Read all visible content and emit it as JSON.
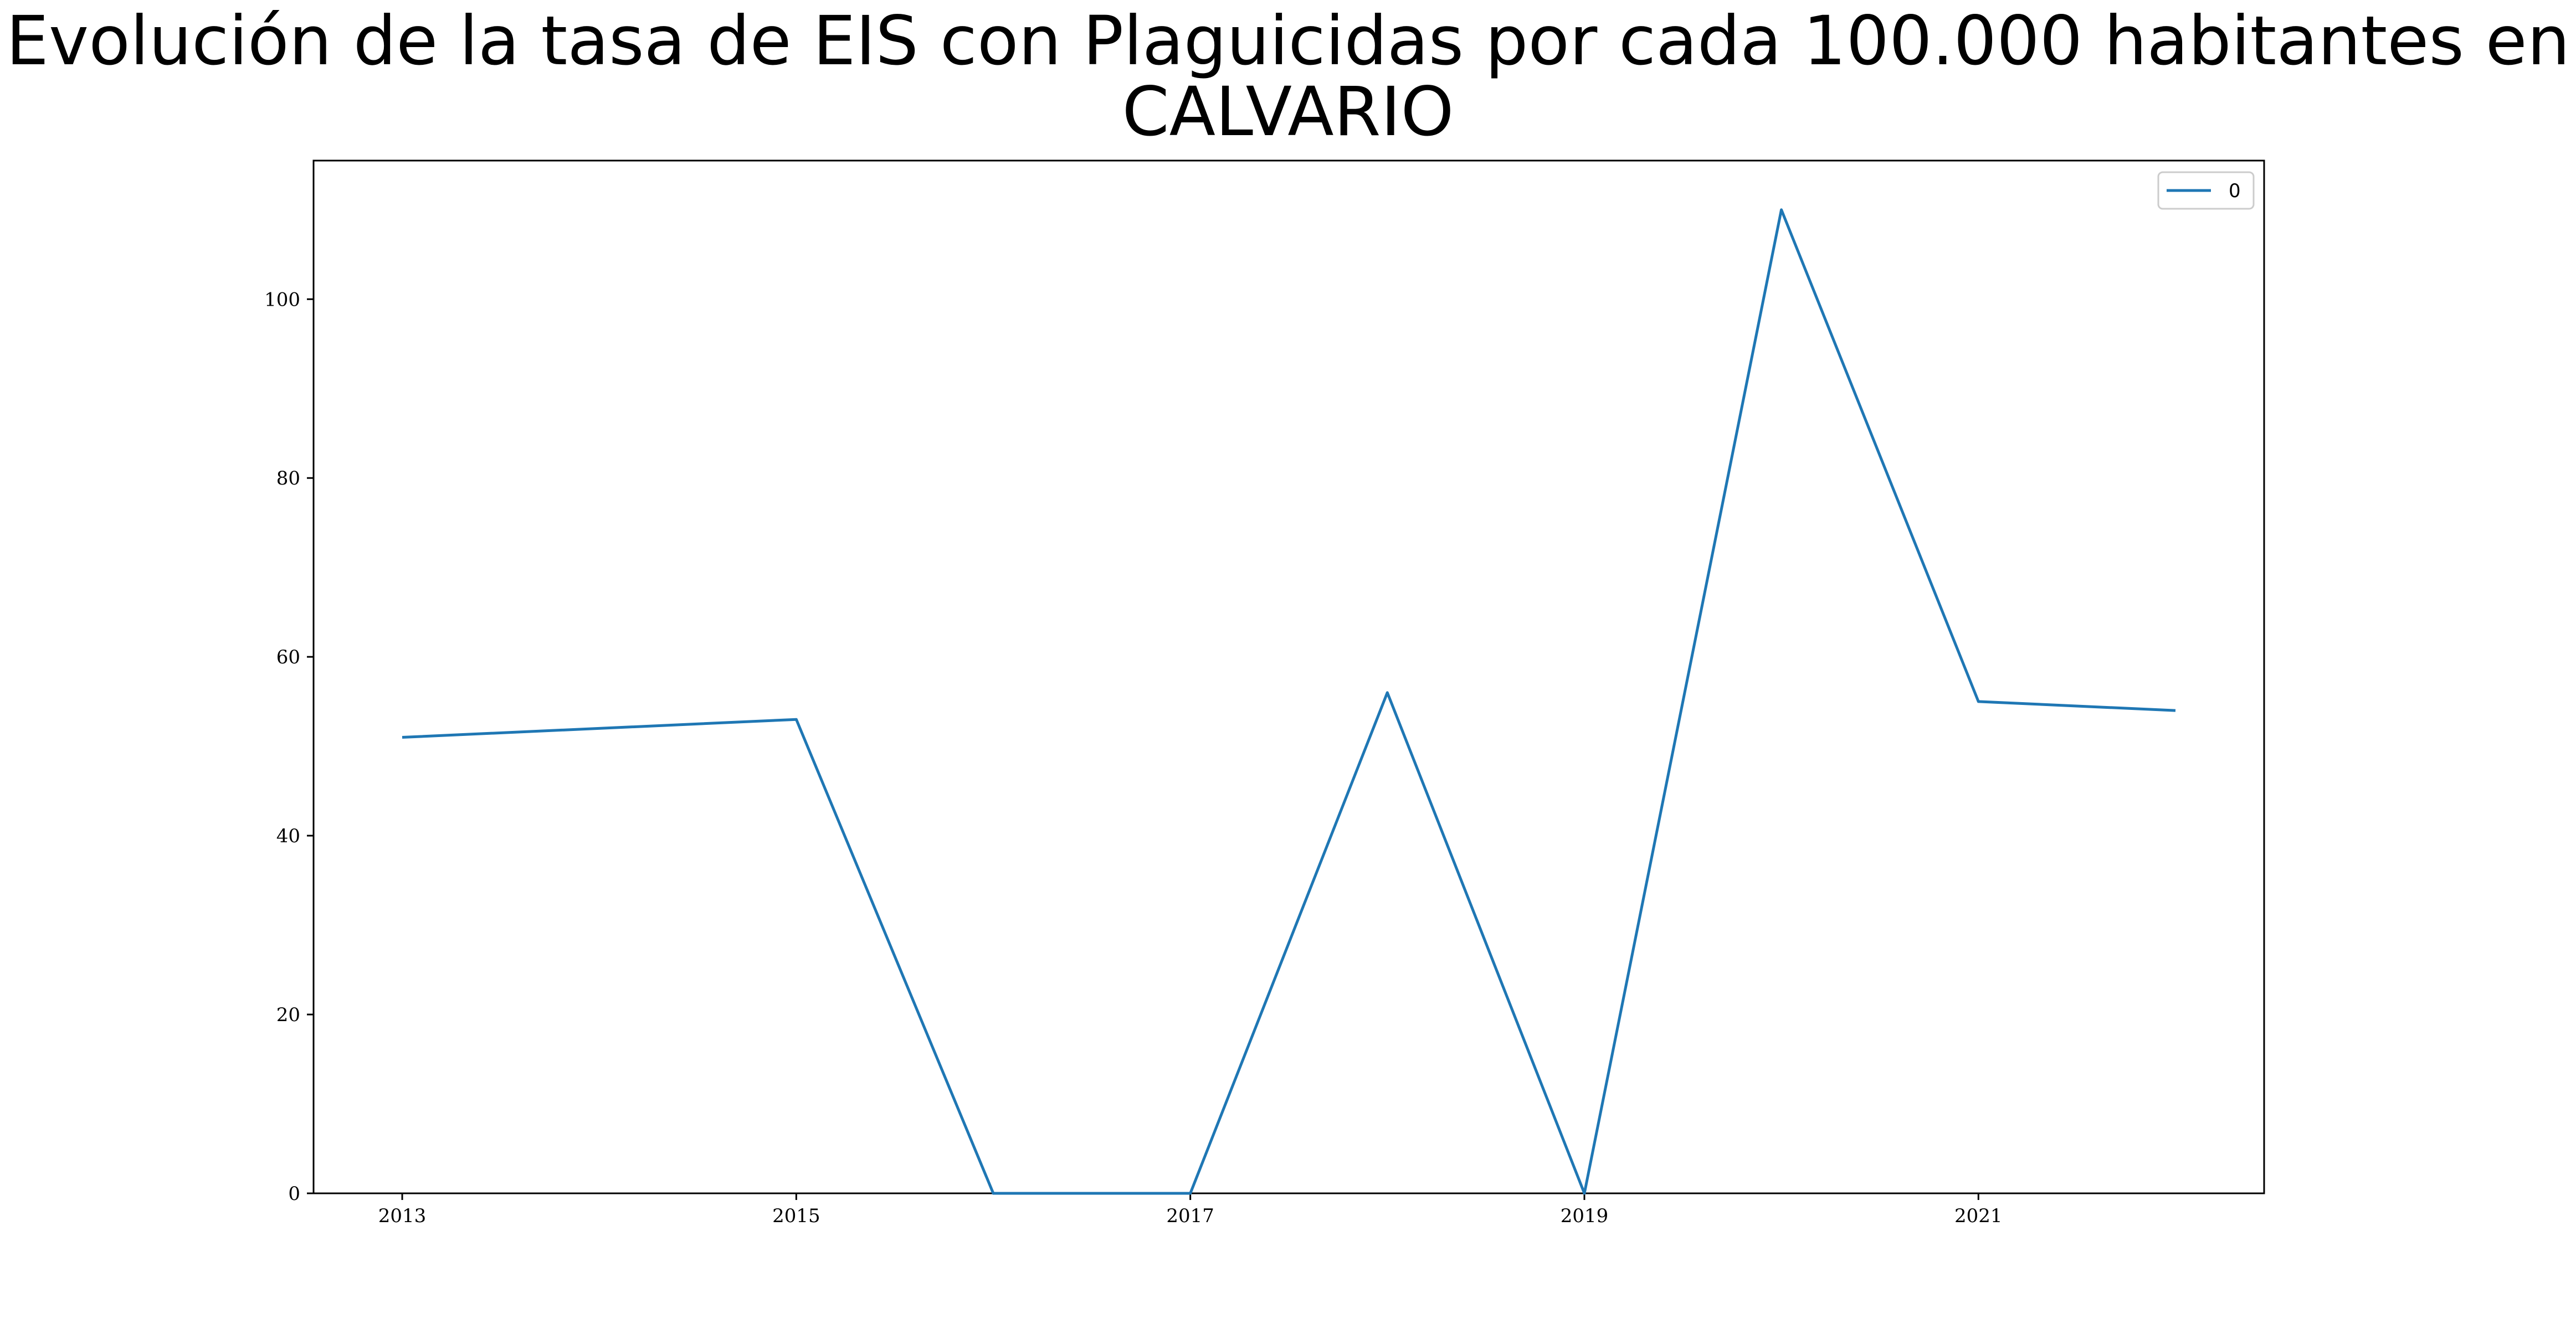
{
  "chart_data": {
    "type": "line",
    "title": "Evolución de la tasa de EIS con Plaguicidas por cada 100.000 habitantes en CALVARIO",
    "title_lines": [
      "Evolución de la tasa de EIS con Plaguicidas por cada 100.000 habitantes en",
      "CALVARIO"
    ],
    "xlabel": "",
    "ylabel": "",
    "x": [
      2013,
      2015,
      2016,
      2017,
      2018,
      2019,
      2020,
      2021,
      2022
    ],
    "series": [
      {
        "name": "0",
        "color": "#1f77b4",
        "values": [
          51,
          53,
          0,
          0,
          56,
          0,
          110,
          55,
          54
        ]
      }
    ],
    "xticks": [
      2013,
      2015,
      2017,
      2019,
      2021
    ],
    "yticks": [
      0,
      20,
      40,
      60,
      80,
      100
    ],
    "xlim": [
      2012.55,
      2022.45
    ],
    "ylim": [
      0,
      115.5
    ],
    "grid": false,
    "legend_position": "top-right"
  }
}
